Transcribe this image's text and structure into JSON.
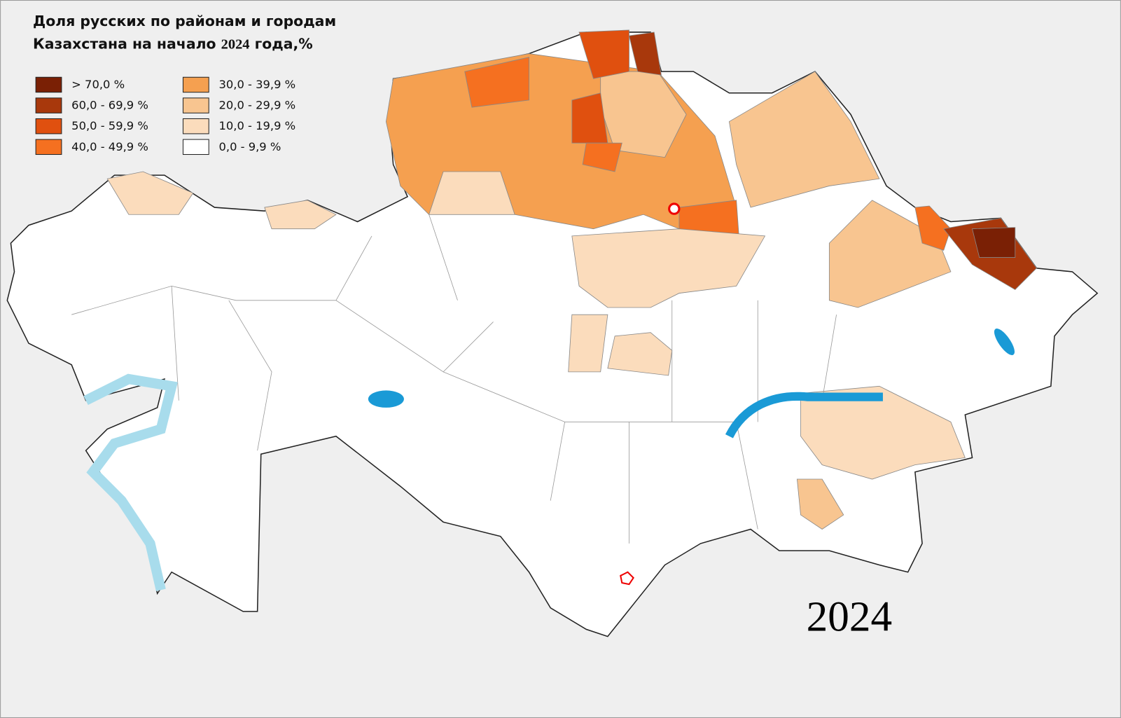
{
  "title": {
    "line1": "Доля русских по районам и городам",
    "line2_start": "Казахстана на начало",
    "line2_year": "2024",
    "line2_end": "года,%"
  },
  "legend": [
    {
      "label": "> 70,0 %",
      "color": "#7a2005"
    },
    {
      "label": "60,0 - 69,9 %",
      "color": "#a8380c"
    },
    {
      "label": "50,0 - 59,9 %",
      "color": "#e0500f"
    },
    {
      "label": "40,0 - 49,9 %",
      "color": "#f57020"
    },
    {
      "label": "30,0 - 39,9 %",
      "color": "#f5a050"
    },
    {
      "label": "20,0 - 29,9 %",
      "color": "#f8c590"
    },
    {
      "label": "10,0 - 19,9 %",
      "color": "#fbdcbc"
    },
    {
      "label": "0,0 - 9,9 %",
      "color": "#ffffff"
    }
  ],
  "year_label": "2024"
}
